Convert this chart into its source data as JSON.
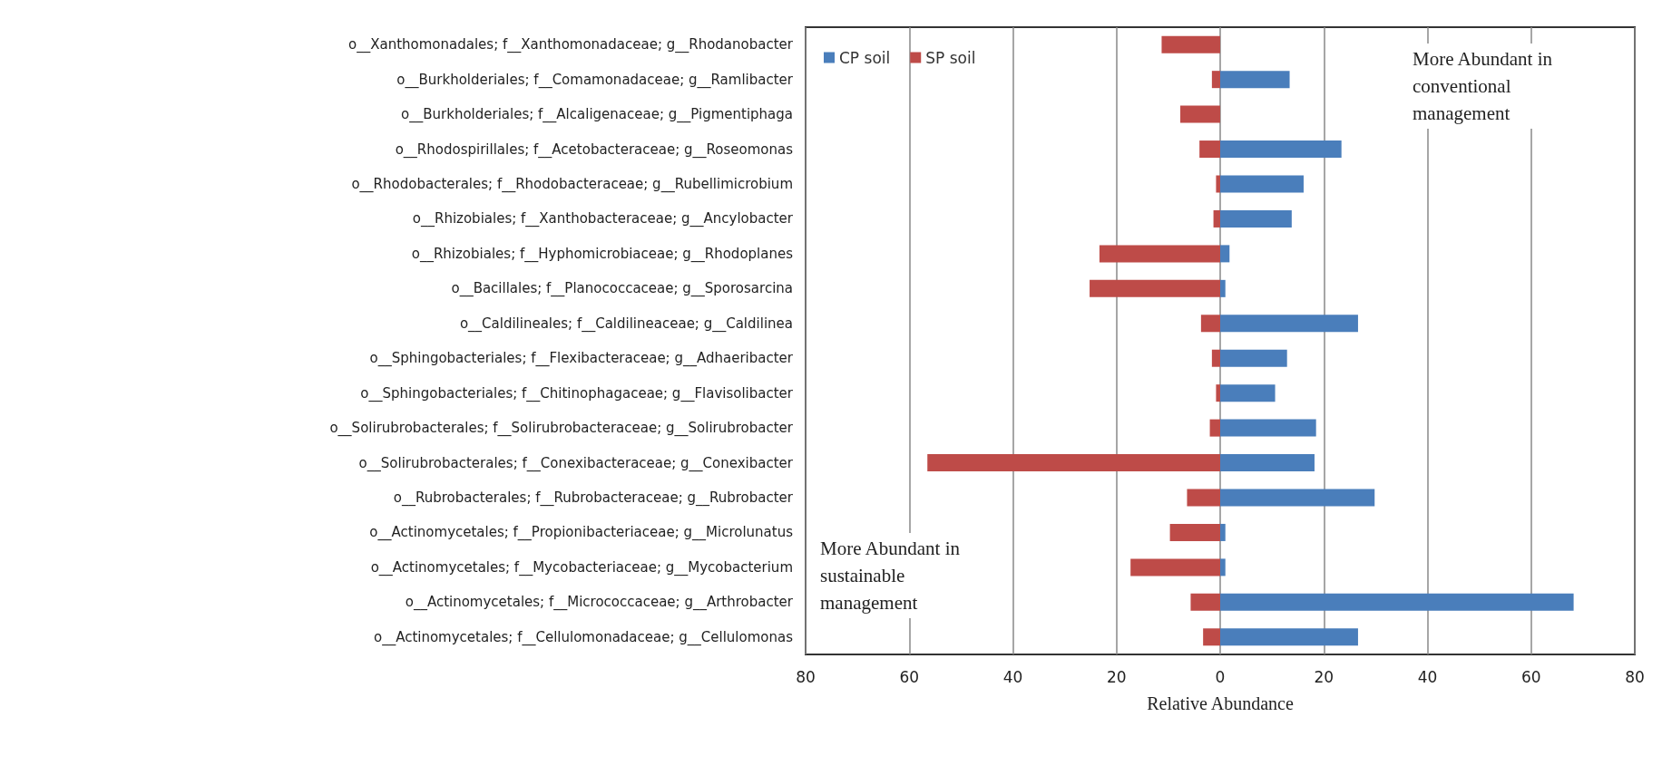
{
  "chart_data": {
    "type": "bar",
    "orientation": "horizontal",
    "xlabel": "Relative Abundance",
    "categories": [
      "o__Xanthomonadales; f__Xanthomonadaceae; g__Rhodanobacter",
      "o__Burkholderiales; f__Comamonadaceae; g__Ramlibacter",
      "o__Burkholderiales; f__Alcaligenaceae; g__Pigmentiphaga",
      "o__Rhodospirillales; f__Acetobacteraceae; g__Roseomonas",
      "o__Rhodobacterales; f__Rhodobacteraceae; g__Rubellimicrobium",
      "o__Rhizobiales; f__Xanthobacteraceae; g__Ancylobacter",
      "o__Rhizobiales; f__Hyphomicrobiaceae; g__Rhodoplanes",
      "o__Bacillales; f__Planococcaceae; g__Sporosarcina",
      "o__Caldilineales; f__Caldilineaceae; g__Caldilinea",
      "o__Sphingobacteriales; f__Flexibacteraceae; g__Adhaeribacter",
      "o__Sphingobacteriales; f__Chitinophagaceae; g__Flavisolibacter",
      "o__Solirubrobacterales; f__Solirubrobacteraceae; g__Solirubrobacter",
      "o__Solirubrobacterales; f__Conexibacteraceae; g__Conexibacter",
      "o__Rubrobacterales; f__Rubrobacteraceae; g__Rubrobacter",
      "o__Actinomycetales; f__Propionibacteriaceae; g__Microlunatus",
      "o__Actinomycetales; f__Mycobacteriaceae; g__Mycobacterium",
      "o__Actinomycetales; f__Micrococcaceae; g__Arthrobacter",
      "o__Actinomycetales; f__Cellulomonadaceae; g__Cellulomonas"
    ],
    "series": [
      {
        "name": "CP soil",
        "color": "#4a7ebb",
        "values": [
          0,
          13.4,
          0,
          23.4,
          16.1,
          13.8,
          1.8,
          1,
          26.6,
          12.9,
          10.6,
          18.5,
          18.2,
          29.8,
          1,
          1,
          68.2,
          26.6
        ]
      },
      {
        "name": "SP soil",
        "color": "#be4b48",
        "values": [
          -11.3,
          -1.6,
          -7.7,
          -4,
          -0.8,
          -1.3,
          -23.3,
          -25.2,
          -3.7,
          -1.6,
          -0.8,
          -2,
          -56.5,
          -6.4,
          -9.7,
          -17.3,
          -5.7,
          -3.3
        ]
      }
    ],
    "xlim": [
      -80,
      80
    ],
    "xticks": [
      {
        "value": -80,
        "label": "80"
      },
      {
        "value": -60,
        "label": "60"
      },
      {
        "value": -40,
        "label": "40"
      },
      {
        "value": -20,
        "label": "20"
      },
      0,
      20,
      40,
      60,
      80
    ],
    "grid": "x",
    "legend": "top left",
    "stacked": true,
    "annotations": [
      "More Abundant in conventional management",
      "More Abundant in sustainable management"
    ]
  }
}
